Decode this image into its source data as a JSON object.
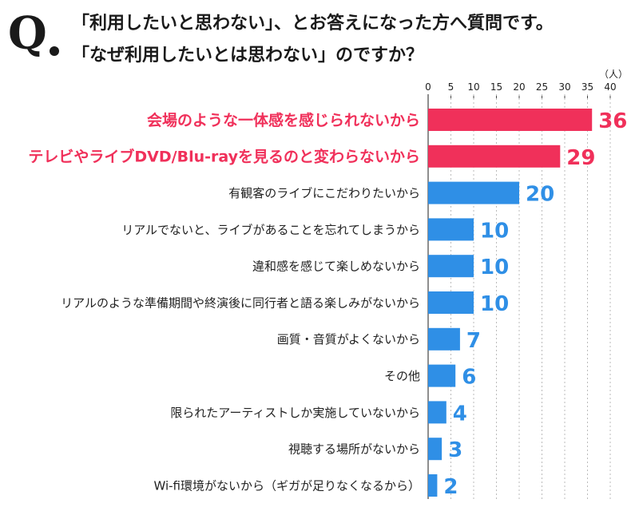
{
  "header": {
    "q_label": "Q",
    "title_line1": "「利用したいと思わない」、とお答えになった方へ質問です。",
    "title_line2": "「なぜ利用したいとは思わない」のですか？"
  },
  "colors": {
    "highlight": "#f0305a",
    "normal": "#2f8fe6",
    "axis": "#444444",
    "grid": "#bbbbbb"
  },
  "chart_data": {
    "type": "bar",
    "orientation": "horizontal",
    "unit_label": "（人）",
    "xlim": [
      0,
      40
    ],
    "xticks": [
      0,
      5,
      10,
      15,
      20,
      25,
      30,
      35,
      40
    ],
    "categories": [
      "会場のような一体感を感じられないから",
      "テレビやライブDVD/Blu-rayを見るのと変わらないから",
      "有観客のライブにこだわりたいから",
      "リアルでないと、ライブがあることを忘れてしまうから",
      "違和感を感じて楽しめないから",
      "リアルのような準備期間や終演後に同行者と語る楽しみがないから",
      "画質・音質がよくないから",
      "その他",
      "限られたアーティストしか実施していないから",
      "視聴する場所がないから",
      "Wi-fi環境がないから（ギガが足りなくなるから）"
    ],
    "values": [
      36,
      29,
      20,
      10,
      10,
      10,
      7,
      6,
      4,
      3,
      2
    ],
    "value_labels": [
      "36",
      "29",
      "20",
      "10",
      "10",
      "10",
      "7",
      "6",
      "4",
      "3",
      "2"
    ],
    "highlighted": [
      true,
      true,
      false,
      false,
      false,
      false,
      false,
      false,
      false,
      false,
      false
    ]
  }
}
